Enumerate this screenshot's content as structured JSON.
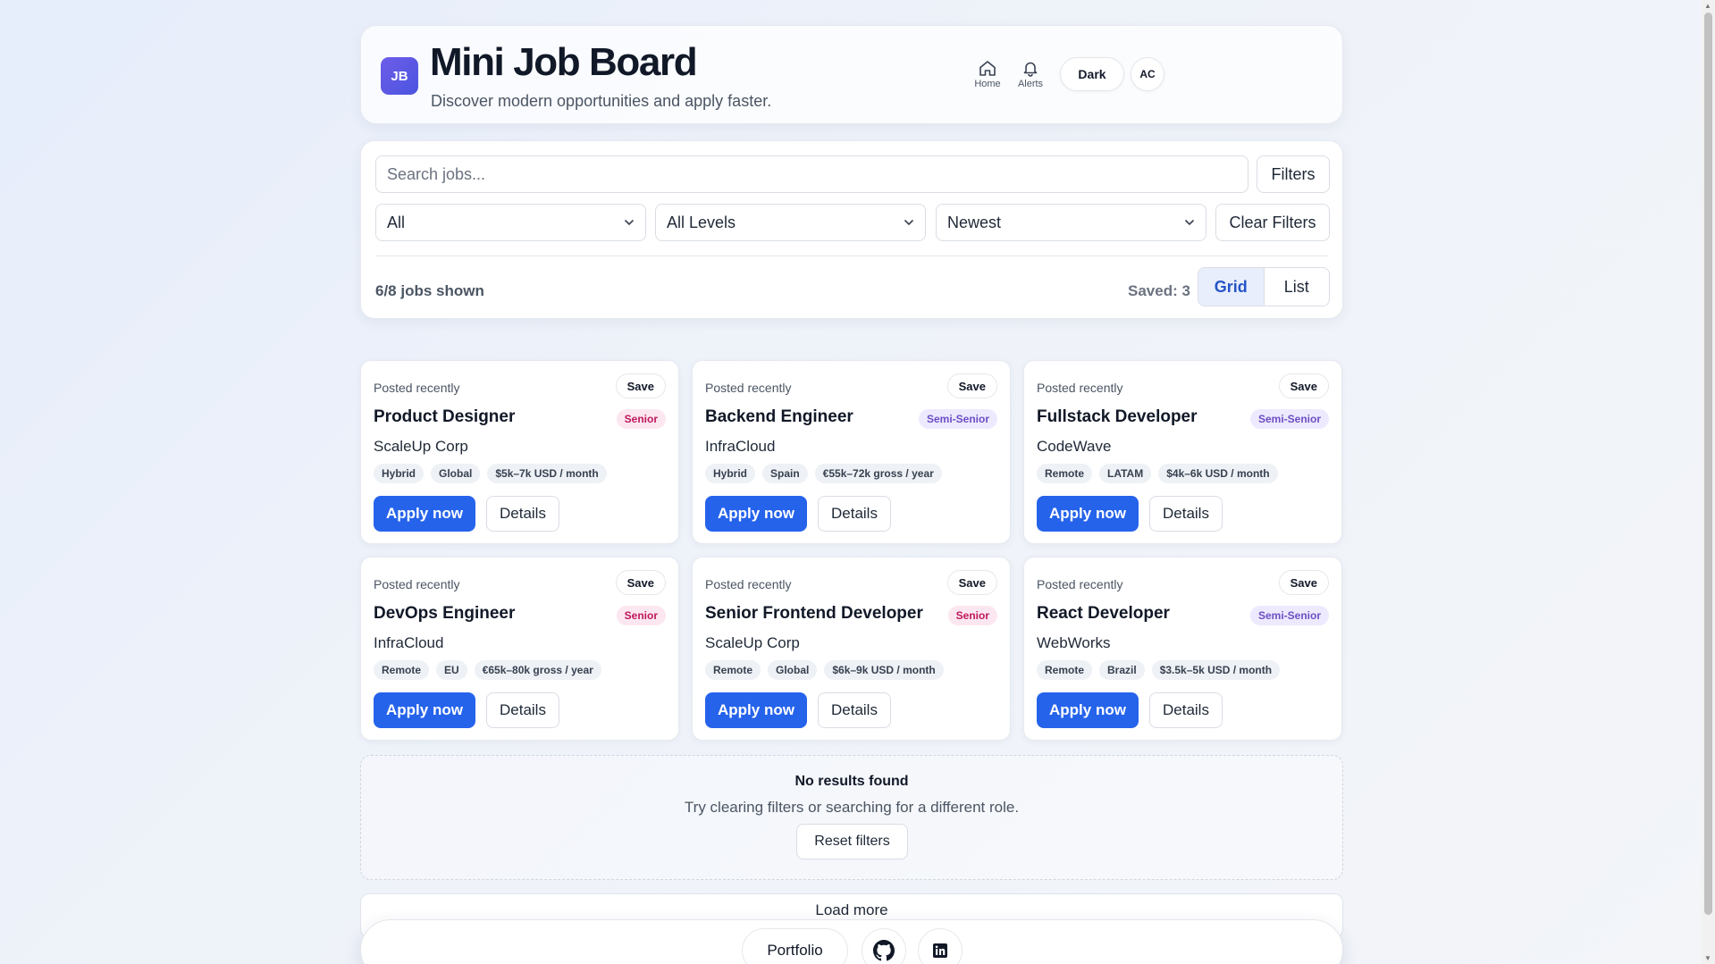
{
  "header": {
    "logo": "JB",
    "title": "Mini Job Board",
    "subtitle": "Discover modern opportunities and apply faster.",
    "nav": [
      {
        "label": "Home",
        "icon": "home-icon"
      },
      {
        "label": "Alerts",
        "icon": "bell-icon"
      }
    ],
    "theme_button": "Dark",
    "avatar": "AC"
  },
  "filters": {
    "search_placeholder": "Search jobs...",
    "filters_button": "Filters",
    "location_select": "All",
    "level_select": "All Levels",
    "sort_select": "Newest",
    "clear_button": "Clear Filters",
    "count_text": "6/8 jobs shown",
    "saved_text": "Saved: 3",
    "view_grid": "Grid",
    "view_list": "List",
    "active_view": "Grid"
  },
  "jobs": [
    {
      "posted": "Posted recently",
      "save": "Save",
      "title": "Product Designer",
      "level": "Senior",
      "company": "ScaleUp Corp",
      "tags": [
        "Hybrid",
        "Global",
        "$5k–7k USD / month"
      ],
      "apply": "Apply now",
      "details": "Details"
    },
    {
      "posted": "Posted recently",
      "save": "Save",
      "title": "Backend Engineer",
      "level": "Semi-Senior",
      "company": "InfraCloud",
      "tags": [
        "Hybrid",
        "Spain",
        "€55k–72k gross / year"
      ],
      "apply": "Apply now",
      "details": "Details"
    },
    {
      "posted": "Posted recently",
      "save": "Save",
      "title": "Fullstack Developer",
      "level": "Semi-Senior",
      "company": "CodeWave",
      "tags": [
        "Remote",
        "LATAM",
        "$4k–6k USD / month"
      ],
      "apply": "Apply now",
      "details": "Details"
    },
    {
      "posted": "Posted recently",
      "save": "Save",
      "title": "DevOps Engineer",
      "level": "Senior",
      "company": "InfraCloud",
      "tags": [
        "Remote",
        "EU",
        "€65k–80k gross / year"
      ],
      "apply": "Apply now",
      "details": "Details"
    },
    {
      "posted": "Posted recently",
      "save": "Save",
      "title": "Senior Frontend Developer",
      "level": "Senior",
      "company": "ScaleUp Corp",
      "tags": [
        "Remote",
        "Global",
        "$6k–9k USD / month"
      ],
      "apply": "Apply now",
      "details": "Details"
    },
    {
      "posted": "Posted recently",
      "save": "Save",
      "title": "React Developer",
      "level": "Semi-Senior",
      "company": "WebWorks",
      "tags": [
        "Remote",
        "Brazil",
        "$3.5k–5k USD / month"
      ],
      "apply": "Apply now",
      "details": "Details"
    }
  ],
  "empty_state": {
    "title": "No results found",
    "subtitle": "Try clearing filters or searching for a different role.",
    "reset_button": "Reset filters"
  },
  "load_more": "Load more",
  "footer": {
    "portfolio": "Portfolio",
    "github_icon": "github-icon",
    "linkedin_icon": "linkedin-icon"
  },
  "colors": {
    "accent": "#2563eb",
    "senior_badge": "#be185d",
    "semi_senior_badge": "#6d4fc4"
  }
}
